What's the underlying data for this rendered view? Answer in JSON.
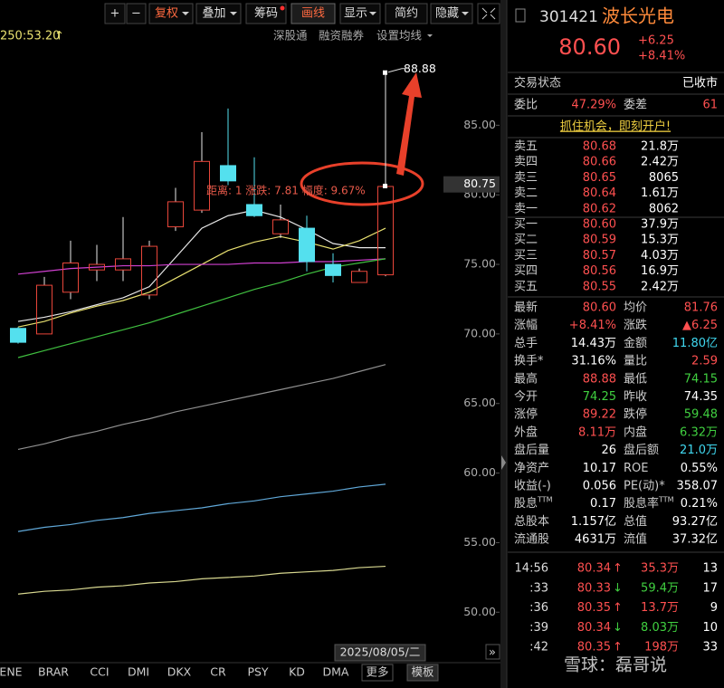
{
  "toolbar": {
    "buttons": [
      "+",
      "−",
      "复权",
      "叠加",
      "筹码",
      "画线",
      "显示",
      "简约",
      "隐藏"
    ]
  },
  "chart_header": {
    "ma_label": "250:53.20",
    "links": [
      "深股通",
      "融资融券",
      "设置均线"
    ]
  },
  "chart": {
    "ylim": [
      48,
      91.4
    ],
    "yticks": [
      {
        "value": 85,
        "label": "85.00"
      },
      {
        "value": 80,
        "label": "80.00"
      },
      {
        "value": 75,
        "label": "75.00"
      },
      {
        "value": 70,
        "label": "70.00"
      },
      {
        "value": 65,
        "label": "65.00"
      },
      {
        "value": 60,
        "label": "60.00"
      },
      {
        "value": 55,
        "label": "55.00"
      },
      {
        "value": 50,
        "label": "50.00"
      }
    ],
    "current_price": 80.75,
    "high_label": 88.88,
    "annotation": "距离: 1 涨跌: 7.81 幅度: 9.67%",
    "date": "2025/08/05/二",
    "up_color": "#e8463a",
    "down_color": "#54e0ee",
    "candles": [
      {
        "open": 70.4,
        "close": 69.4,
        "high": 70.5,
        "low": 69.3
      },
      {
        "open": 70.0,
        "close": 73.5,
        "high": 74.1,
        "low": 70.0
      },
      {
        "open": 73.0,
        "close": 75.1,
        "high": 76.7,
        "low": 72.5
      },
      {
        "open": 74.6,
        "close": 75.0,
        "high": 76.4,
        "low": 73.8
      },
      {
        "open": 74.6,
        "close": 75.4,
        "high": 78.4,
        "low": 73.8
      },
      {
        "open": 72.8,
        "close": 76.3,
        "high": 76.7,
        "low": 72.5
      },
      {
        "open": 77.7,
        "close": 79.5,
        "high": 80.5,
        "low": 77.4
      },
      {
        "open": 78.9,
        "close": 82.4,
        "high": 84.5,
        "low": 78.7
      },
      {
        "open": 82.1,
        "close": 81.0,
        "high": 86.2,
        "low": 80.7
      },
      {
        "open": 79.3,
        "close": 78.5,
        "high": 82.7,
        "low": 78.4
      },
      {
        "open": 77.2,
        "close": 78.2,
        "high": 79.3,
        "low": 76.9
      },
      {
        "open": 77.6,
        "close": 75.2,
        "high": 78.5,
        "low": 74.5
      },
      {
        "open": 75.0,
        "close": 74.2,
        "high": 75.8,
        "low": 73.7
      },
      {
        "open": 73.7,
        "close": 74.5,
        "high": 74.7,
        "low": 73.7
      },
      {
        "open": 74.25,
        "close": 80.6,
        "high": 88.88,
        "low": 74.15
      }
    ],
    "lines": [
      {
        "color": "#e8e8e8",
        "values": [
          70.9,
          71.2,
          71.6,
          72.1,
          72.6,
          73.4,
          75.5,
          77.6,
          78.5,
          78.9,
          78.4,
          77.5,
          76.5,
          76.2,
          76.2
        ]
      },
      {
        "color": "#e8e070",
        "values": [
          70.5,
          70.9,
          71.5,
          72.0,
          72.4,
          73.0,
          74.0,
          75.0,
          76.0,
          76.6,
          77.0,
          76.6,
          76.1,
          76.7,
          77.6
        ]
      },
      {
        "color": "#d040d0",
        "values": [
          74.3,
          74.5,
          74.7,
          74.8,
          74.9,
          74.9,
          75.0,
          75.0,
          75.0,
          75.1,
          75.1,
          75.2,
          75.2,
          75.3,
          75.4
        ]
      },
      {
        "color": "#40c040",
        "values": [
          68.3,
          68.8,
          69.3,
          69.8,
          70.3,
          70.8,
          71.4,
          72.0,
          72.6,
          73.2,
          73.7,
          74.3,
          74.8,
          75.1,
          75.4
        ]
      },
      {
        "color": "#909090",
        "values": [
          61.7,
          62.1,
          62.6,
          63.0,
          63.5,
          63.9,
          64.4,
          64.8,
          65.2,
          65.6,
          66.0,
          66.4,
          66.8,
          67.3,
          67.8
        ]
      },
      {
        "color": "#60a8d8",
        "values": [
          55.8,
          56.1,
          56.3,
          56.6,
          56.8,
          57.1,
          57.3,
          57.5,
          57.8,
          58.0,
          58.3,
          58.5,
          58.7,
          59.0,
          59.2
        ]
      },
      {
        "color": "#d8d890",
        "values": [
          51.3,
          51.5,
          51.6,
          51.8,
          51.9,
          52.1,
          52.2,
          52.4,
          52.5,
          52.6,
          52.8,
          52.9,
          53.0,
          53.2,
          53.3
        ]
      }
    ]
  },
  "indicator_tabs": [
    "ENE",
    "BRAR",
    "CCI",
    "DMI",
    "DKX",
    "CR",
    "PSY",
    "KD",
    "DMA",
    "更多",
    "模板"
  ],
  "quote": {
    "code": "301421",
    "name": "波长光电",
    "price": "80.60",
    "change": "+6.25",
    "change_pct": "+8.41%",
    "status": [
      "交易状态",
      "已收市"
    ],
    "ratio": [
      "委比",
      "47.29%",
      "委差",
      "61"
    ],
    "promo": "抓住机会，即刻开户!",
    "book": [
      [
        "卖五",
        "80.68",
        "21.8万"
      ],
      [
        "卖四",
        "80.66",
        "2.42万"
      ],
      [
        "卖三",
        "80.65",
        "8065"
      ],
      [
        "卖二",
        "80.64",
        "1.61万"
      ],
      [
        "卖一",
        "80.62",
        "8062"
      ],
      [
        "买一",
        "80.60",
        "37.9万"
      ],
      [
        "买二",
        "80.59",
        "15.3万"
      ],
      [
        "买三",
        "80.57",
        "4.03万"
      ],
      [
        "买四",
        "80.56",
        "16.9万"
      ],
      [
        "买五",
        "80.55",
        "2.42万"
      ]
    ],
    "stats": [
      [
        {
          "label": "最新",
          "value": "80.60",
          "color": "#ff5050"
        },
        {
          "label": "均价",
          "value": "81.76",
          "color": "#ff5050"
        }
      ],
      [
        {
          "label": "涨幅",
          "value": "+8.41%",
          "color": "#ff5050"
        },
        {
          "label": "涨跌",
          "value": "▲6.25",
          "color": "#ff5050"
        }
      ],
      [
        {
          "label": "总手",
          "value": "14.43万",
          "color": "#ffffff"
        },
        {
          "label": "金额",
          "value": "11.80亿",
          "color": "#40d8f0"
        }
      ],
      [
        {
          "label": "换手*",
          "value": "31.16%",
          "color": "#ffffff"
        },
        {
          "label": "量比",
          "value": "2.59",
          "color": "#ff5050"
        }
      ],
      [
        {
          "label": "最高",
          "value": "88.88",
          "color": "#ff5050"
        },
        {
          "label": "最低",
          "value": "74.15",
          "color": "#40d040"
        }
      ],
      [
        {
          "label": "今开",
          "value": "74.25",
          "color": "#40d040"
        },
        {
          "label": "昨收",
          "value": "74.35",
          "color": "#ffffff"
        }
      ],
      [
        {
          "label": "涨停",
          "value": "89.22",
          "color": "#ff5050"
        },
        {
          "label": "跌停",
          "value": "59.48",
          "color": "#40d040"
        }
      ],
      [
        {
          "label": "外盘",
          "value": "8.11万",
          "color": "#ff5050"
        },
        {
          "label": "内盘",
          "value": "6.32万",
          "color": "#40d040"
        }
      ],
      [
        {
          "label": "盘后量",
          "value": "26",
          "color": "#ffffff"
        },
        {
          "label": "盘后额",
          "value": "21.0万",
          "color": "#40d8f0"
        }
      ],
      [
        {
          "label": "净资产",
          "value": "10.17",
          "color": "#ffffff"
        },
        {
          "label": "ROE",
          "value": "0.55%",
          "color": "#ffffff"
        }
      ],
      [
        {
          "label": "收益(-)",
          "value": "0.056",
          "color": "#ffffff"
        },
        {
          "label": "PE(动)*",
          "value": "358.07",
          "color": "#ffffff"
        }
      ],
      [
        {
          "label": "股息",
          "sup": "TTM",
          "value": "0.17",
          "color": "#ffffff"
        },
        {
          "label": "股息率",
          "sup": "TTM",
          "value": "0.21%",
          "color": "#ffffff"
        }
      ],
      [
        {
          "label": "总股本",
          "value": "1.157亿",
          "color": "#ffffff"
        },
        {
          "label": "总值",
          "value": "93.27亿",
          "color": "#ffffff"
        }
      ],
      [
        {
          "label": "流通股",
          "value": "4631万",
          "color": "#ffffff"
        },
        {
          "label": "流值",
          "value": "37.32亿",
          "color": "#ffffff"
        }
      ]
    ],
    "ticks": [
      {
        "time": "14:56",
        "price": "80.34",
        "arrow": "↑",
        "volume": "35.3万",
        "count": "13",
        "color": "#ff5050"
      },
      {
        "time": ":33",
        "price": "80.33",
        "arrow": "↓",
        "volume": "59.4万",
        "count": "17",
        "color": "#40d040"
      },
      {
        "time": ":36",
        "price": "80.35",
        "arrow": "↑",
        "volume": "13.7万",
        "count": "9",
        "color": "#ff5050"
      },
      {
        "time": ":39",
        "price": "80.34",
        "arrow": "↓",
        "volume": "8.03万",
        "count": "10",
        "color": "#40d040"
      },
      {
        "time": ":42",
        "price": "80.35",
        "arrow": "↑",
        "volume": "198万",
        "count": "33",
        "color": "#ff5050"
      }
    ],
    "watermark": "雪球：磊哥说"
  }
}
